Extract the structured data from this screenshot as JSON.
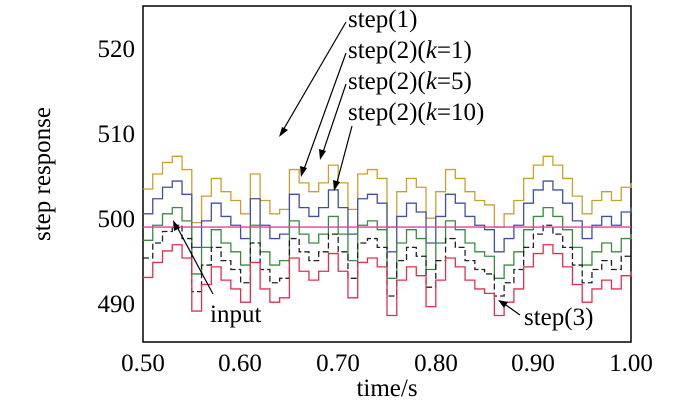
{
  "chart_data": {
    "type": "line",
    "title": "",
    "xlabel": "time/s",
    "ylabel": "step response",
    "xlim": [
      0.5,
      1.0
    ],
    "ylim": [
      487,
      525
    ],
    "xticks": [
      0.5,
      0.6,
      0.7,
      0.8,
      0.9,
      1.0
    ],
    "xtick_labels": [
      "0.50",
      "0.60",
      "0.70",
      "0.80",
      "0.90",
      "1.00"
    ],
    "yticks": [
      490,
      500,
      510,
      520
    ],
    "ytick_labels": [
      "490",
      "500",
      "510",
      "520"
    ],
    "grid": false,
    "x": [
      0.5,
      0.51,
      0.52,
      0.53,
      0.54,
      0.55,
      0.56,
      0.57,
      0.58,
      0.59,
      0.6,
      0.61,
      0.62,
      0.63,
      0.64,
      0.65,
      0.66,
      0.67,
      0.68,
      0.69,
      0.7,
      0.71,
      0.72,
      0.73,
      0.74,
      0.75,
      0.76,
      0.77,
      0.78,
      0.79,
      0.8,
      0.81,
      0.82,
      0.83,
      0.84,
      0.85,
      0.86,
      0.87,
      0.88,
      0.89,
      0.9,
      0.91,
      0.92,
      0.93,
      0.94,
      0.95,
      0.96,
      0.97,
      0.98,
      0.99,
      1.0
    ],
    "base": [
      494.3,
      496.0,
      497.3,
      498.0,
      496.5,
      490.5,
      493.5,
      495.5,
      494.0,
      493.0,
      491.5,
      496.0,
      493.0,
      491.5,
      492.0,
      496.5,
      495.0,
      494.0,
      495.0,
      497.0,
      495.0,
      492.0,
      496.0,
      496.5,
      495.5,
      490.0,
      494.0,
      495.5,
      494.5,
      491.0,
      494.0,
      496.5,
      495.5,
      494.0,
      493.0,
      492.5,
      490.0,
      491.5,
      493.0,
      495.5,
      497.0,
      498.0,
      497.0,
      495.5,
      493.5,
      491.5,
      493.0,
      494.0,
      493.0,
      494.5,
      495.0
    ],
    "series": [
      {
        "name": "step(1)",
        "color": "#c8a030",
        "offset": 10.0,
        "dash": "solid"
      },
      {
        "name": "step(2)(k=1)",
        "color": "#4050a0",
        "offset": 7.2,
        "dash": "solid"
      },
      {
        "name": "step(2)(k=5)",
        "color": "#3a8a40",
        "offset": 4.2,
        "dash": "solid"
      },
      {
        "name": "step(2)(k=10)",
        "color": "#202020",
        "offset": 2.2,
        "dash": "dashed"
      },
      {
        "name": "step(3)",
        "color": "#e03050",
        "offset": 0.0,
        "dash": "solid"
      },
      {
        "name": "input",
        "color": "#e040a0",
        "constant": 500,
        "dash": "solid"
      }
    ],
    "annotations": {
      "step1": {
        "prefix": "step(1)",
        "k": "",
        "suffix": "",
        "points_to_x": 0.64
      },
      "k1": {
        "prefix": "step(2)(",
        "k": "k",
        "suffix": "=1)",
        "points_to_x": 0.66
      },
      "k5": {
        "prefix": "step(2)(",
        "k": "k",
        "suffix": "=5)",
        "points_to_x": 0.68
      },
      "k10": {
        "prefix": "step(2)(",
        "k": "k",
        "suffix": "=10)",
        "points_to_x": 0.7
      },
      "input": {
        "text": "input",
        "points_to_x": 0.52
      },
      "step3": {
        "text": "step(3)",
        "points_to_x": 0.87
      }
    }
  }
}
